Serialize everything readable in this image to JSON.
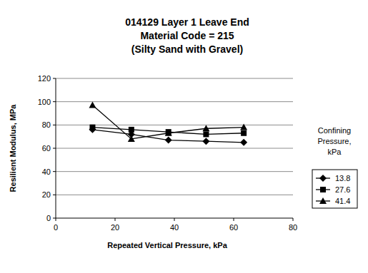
{
  "chart_data": {
    "type": "line",
    "title": [
      "014129 Layer 1 Leave End",
      "Material Code = 215",
      "(Silty Sand with Gravel)"
    ],
    "x_label": "Repeated Vertical Pressure, kPa",
    "y_label": "Resilient Modulus, MPa",
    "legend_title": "Confining Pressure, kPa",
    "x": [
      12.4,
      25.5,
      38.0,
      50.7,
      63.4
    ],
    "series": [
      {
        "name": "13.8",
        "color": "#000000",
        "marker": "diamond",
        "values": [
          76,
          72,
          67,
          66,
          65
        ]
      },
      {
        "name": "27.6",
        "color": "#000000",
        "marker": "square",
        "values": [
          78,
          76,
          74,
          72,
          73
        ]
      },
      {
        "name": "41.4",
        "color": "#000000",
        "marker": "triangle",
        "values": [
          97,
          68,
          73,
          77,
          78
        ]
      }
    ],
    "xlim": [
      0,
      80
    ],
    "xticks": [
      0,
      20,
      40,
      60,
      80
    ],
    "ylim": [
      0,
      120
    ],
    "yticks": [
      0,
      20,
      40,
      60,
      80,
      100,
      120
    ],
    "grid": true,
    "legend": "right"
  }
}
